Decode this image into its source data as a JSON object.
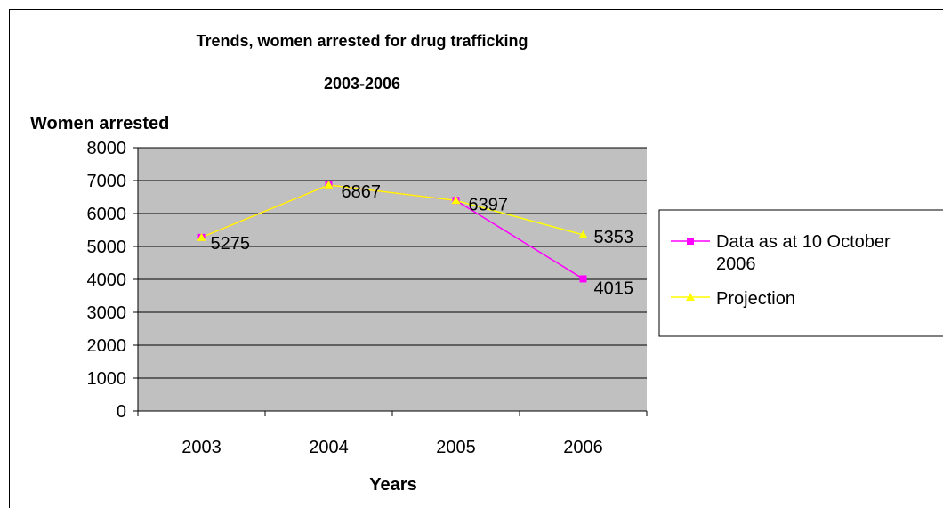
{
  "chart_data": {
    "type": "line",
    "title": "Trends, women arrested for drug trafficking",
    "subtitle": "2003-2006",
    "xlabel": "Years",
    "ylabel": "Women arrested",
    "categories": [
      "2003",
      "2004",
      "2005",
      "2006"
    ],
    "ylim": [
      0,
      8000
    ],
    "yticks": [
      0,
      1000,
      2000,
      3000,
      4000,
      5000,
      6000,
      7000,
      8000
    ],
    "grid": true,
    "legend_position": "right",
    "plot_background": "#c0c0c0",
    "series": [
      {
        "name": "Data as at 10 October 2006",
        "values": [
          5275,
          6867,
          6397,
          4015
        ],
        "color": "#ff00ff",
        "marker": "square"
      },
      {
        "name": "Projection",
        "values": [
          5275,
          6867,
          6397,
          5353
        ],
        "color": "#ffff00",
        "marker": "triangle"
      }
    ],
    "data_labels": [
      {
        "category": "2003",
        "text": "5275"
      },
      {
        "category": "2004",
        "text": "6867"
      },
      {
        "category": "2005",
        "text": "6397"
      },
      {
        "category": "2006",
        "text": "5353"
      },
      {
        "category": "2006",
        "text": "4015"
      }
    ]
  },
  "legend": {
    "line1_part1": "Data as at 10 October",
    "line1_part2": "2006",
    "line2": "Projection"
  }
}
